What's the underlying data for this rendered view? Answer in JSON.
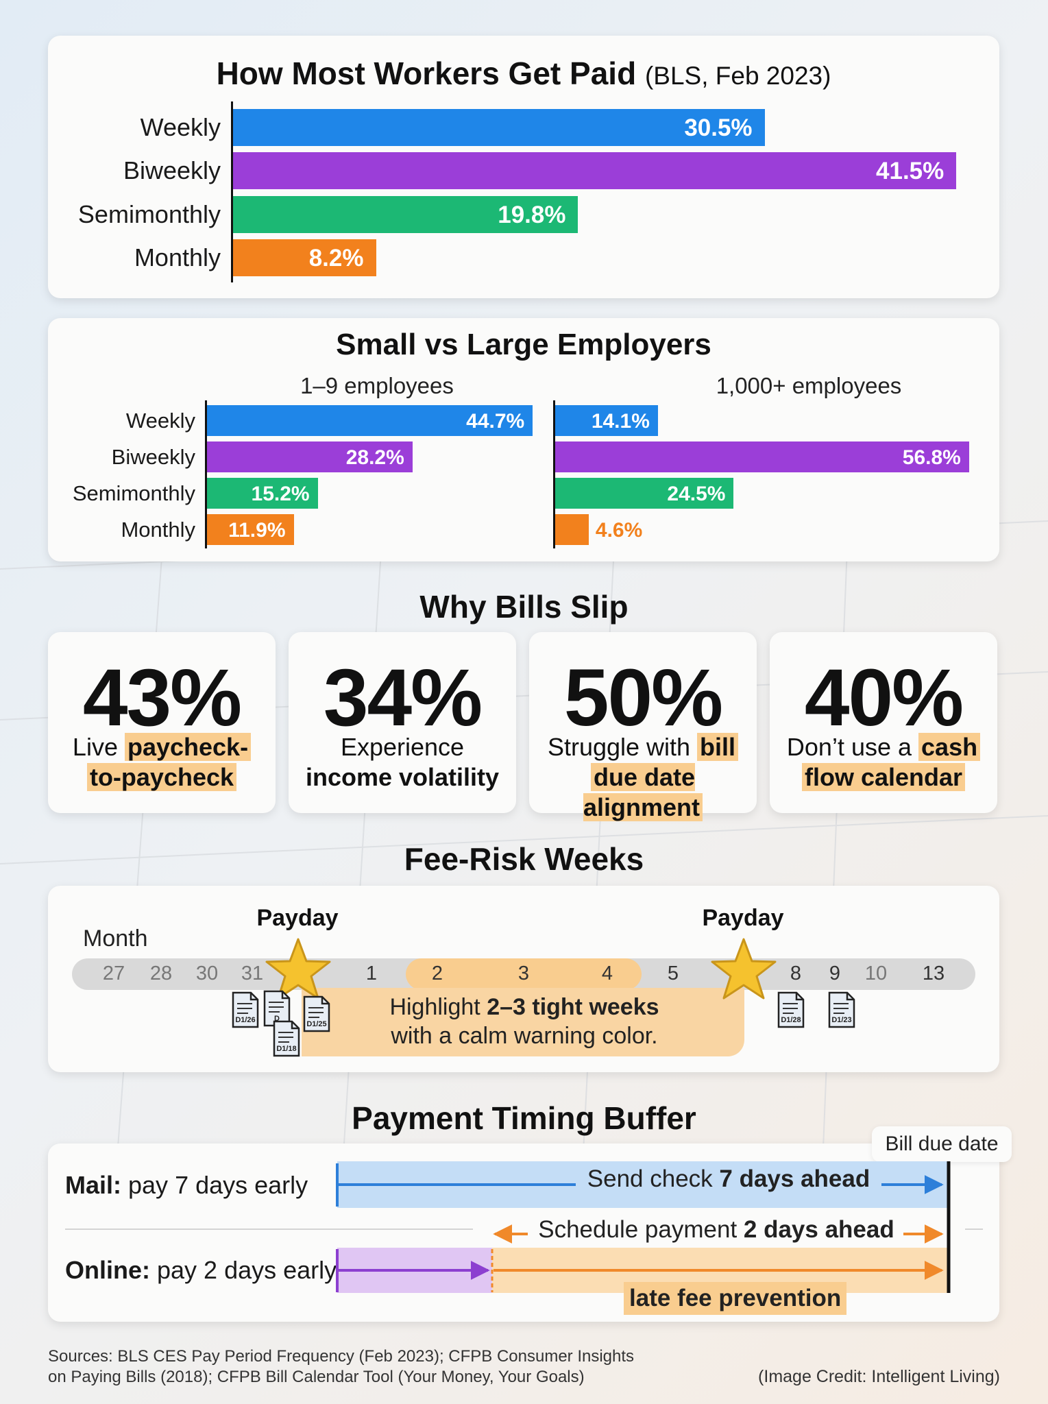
{
  "chart_data": [
    {
      "type": "bar",
      "orientation": "horizontal",
      "title": "How Most Workers Get Paid",
      "subtitle": "(BLS, Feb 2023)",
      "categories": [
        "Weekly",
        "Biweekly",
        "Semimonthly",
        "Monthly"
      ],
      "values": [
        30.5,
        41.5,
        19.8,
        8.2
      ],
      "value_labels": [
        "30.5%",
        "41.5%",
        "19.8%",
        "8.2%"
      ],
      "colors": [
        "#1f86e8",
        "#9b3ed8",
        "#1cb874",
        "#f2811d"
      ],
      "xlim": [
        0,
        42
      ]
    },
    {
      "type": "bar",
      "orientation": "horizontal",
      "title": "Small vs Large Employers",
      "categories": [
        "Weekly",
        "Biweekly",
        "Semimonthly",
        "Monthly"
      ],
      "colors": [
        "#1f86e8",
        "#9b3ed8",
        "#1cb874",
        "#f2811d"
      ],
      "xlim": [
        0,
        57
      ],
      "series": [
        {
          "name": "1–9 employees",
          "values": [
            44.7,
            28.2,
            15.2,
            11.9
          ],
          "value_labels": [
            "44.7%",
            "28.2%",
            "15.2%",
            "11.9%"
          ]
        },
        {
          "name": "1,000+ employees",
          "values": [
            14.1,
            56.8,
            24.5,
            4.6
          ],
          "value_labels": [
            "14.1%",
            "56.8%",
            "24.5%",
            "4.6%"
          ]
        }
      ]
    }
  ],
  "why_bills_slip": {
    "title": "Why Bills Slip",
    "stats": [
      {
        "value": "43%",
        "pre": "Live ",
        "hl1": "paycheck-",
        "mid": "",
        "hl2": "to-paycheck"
      },
      {
        "value": "34%",
        "pre": "Experience",
        "hl1": "",
        "mid": "income volatility",
        "hl2": ""
      },
      {
        "value": "50%",
        "pre": "Struggle with ",
        "hl1": "bill",
        "mid": "",
        "hl2": "due date alignment"
      },
      {
        "value": "40%",
        "pre": "Don’t use a ",
        "hl1": "cash",
        "mid": "",
        "hl2": "flow calendar"
      }
    ]
  },
  "fee_risk": {
    "title": "Fee-Risk Weeks",
    "month_label": "Month",
    "payday_label": "Payday",
    "days": [
      "27",
      "28",
      "30",
      "31",
      "1",
      "2",
      "3",
      "4",
      "5",
      "8",
      "9",
      "10",
      "13"
    ],
    "note_pre": "Highlight ",
    "note_bold": "2–3 tight weeks",
    "note_post": "with a calm warning color.",
    "bill_dates": [
      "D1/26",
      "D",
      "D1/25",
      "D1/18",
      "D1/28",
      "D1/23"
    ],
    "colors": {
      "highlight": "#f9cd8f",
      "star": "#f5c22e",
      "track": "#d9d9d9"
    }
  },
  "payment_buffer": {
    "title": "Payment Timing Buffer",
    "due_label": "Bill due date",
    "mail_bold": "Mail:",
    "mail_text": " pay 7 days early",
    "mail_arrow_pre": "Send check ",
    "mail_arrow_bold": "7 days ahead",
    "schedule_pre": "Schedule payment ",
    "schedule_bold": "2 days ahead",
    "online_bold": "Online:",
    "online_text": " pay 2 days early",
    "late_fee": "late fee prevention",
    "colors": {
      "mail": "#2d7fd9",
      "online": "#8c3fd0",
      "buffer": "#f0892a"
    }
  },
  "footer": {
    "sources_line1": "Sources: BLS CES Pay Period Frequency (Feb 2023); CFPB Consumer Insights",
    "sources_line2": "on Paying Bills (2018); CFPB Bill Calendar Tool (Your Money, Your Goals)",
    "credit": "(Image Credit: Intelligent Living)"
  }
}
